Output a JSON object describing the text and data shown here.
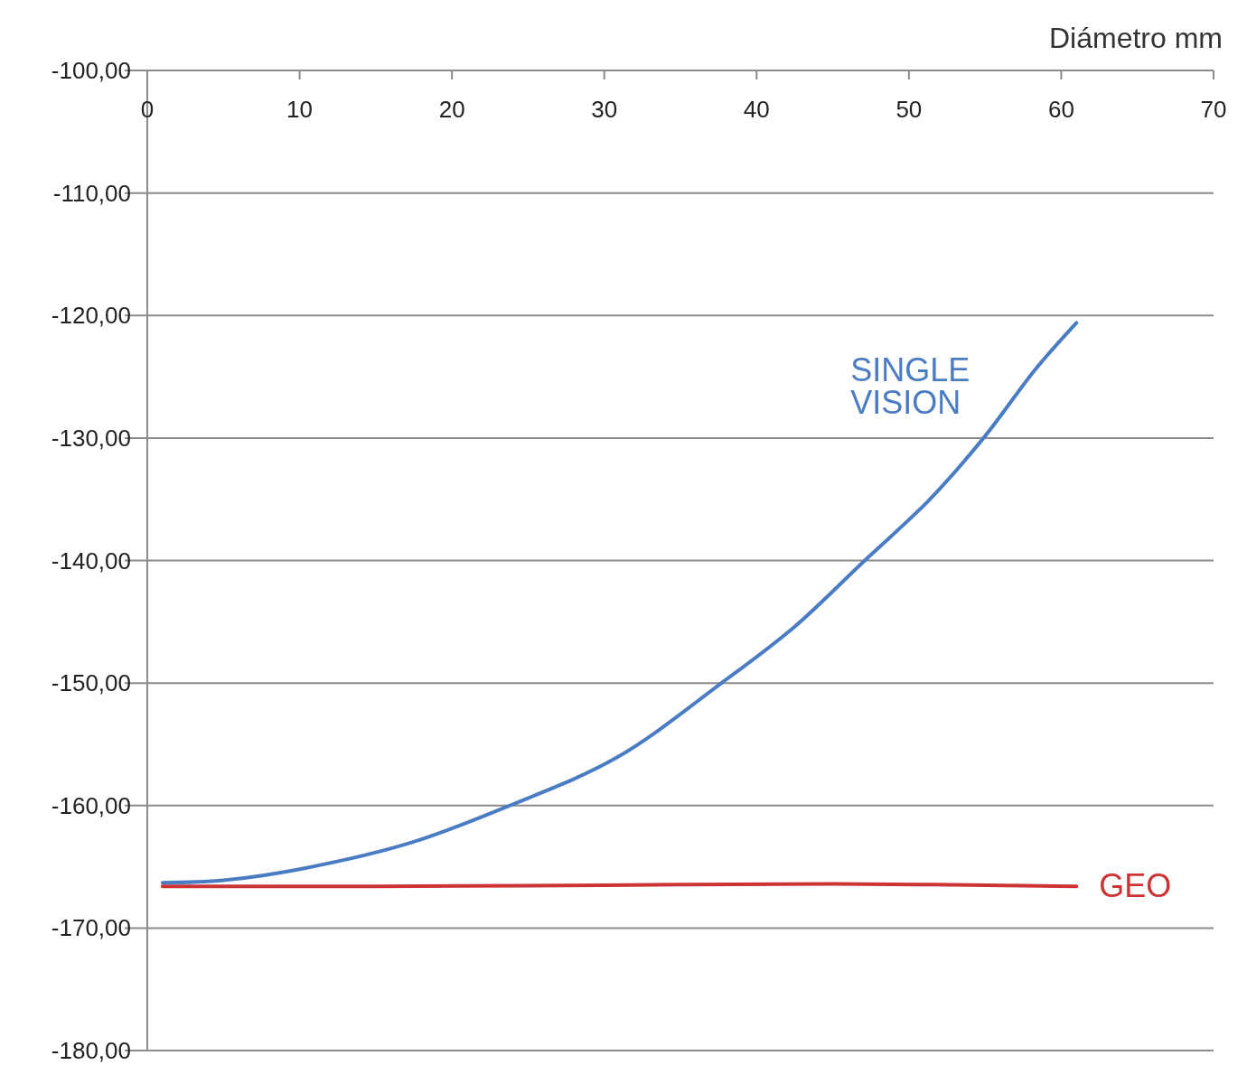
{
  "chart_data": {
    "type": "line",
    "xlabel": "Diámetro mm",
    "xlim": [
      0,
      70
    ],
    "xticks": [
      0,
      10,
      20,
      30,
      40,
      50,
      60,
      70
    ],
    "ylim": [
      -180,
      -100
    ],
    "yticks": [
      {
        "value": -180,
        "label": "-180,00"
      },
      {
        "value": -170,
        "label": "-170,00"
      },
      {
        "value": -160,
        "label": "-160,00"
      },
      {
        "value": -150,
        "label": "-150,00"
      },
      {
        "value": -140,
        "label": "-140,00"
      },
      {
        "value": -130,
        "label": "-130,00"
      },
      {
        "value": -120,
        "label": "-120,00"
      },
      {
        "value": -110,
        "label": "-110,00"
      },
      {
        "value": -100,
        "label": "-100,00"
      }
    ],
    "grid": "y",
    "marker": "none",
    "line_style": "solid",
    "series": [
      {
        "name": "SINGLE VISION",
        "color": "#4a7cc4",
        "x": [
          1,
          5,
          10.4,
          17.4,
          23.8,
          30.8,
          37.7,
          42.5,
          47.1,
          51.3,
          54.9,
          58.3,
          61
        ],
        "values": [
          -166.3,
          -166.1,
          -165.1,
          -163,
          -160,
          -156.1,
          -150,
          -145.4,
          -140,
          -135.1,
          -130,
          -124.4,
          -120.6
        ]
      },
      {
        "name": "GEO",
        "color": "#cc3333",
        "x": [
          1,
          15,
          30,
          45,
          61
        ],
        "values": [
          -166.6,
          -166.6,
          -166.5,
          -166.4,
          -166.6
        ]
      }
    ]
  }
}
